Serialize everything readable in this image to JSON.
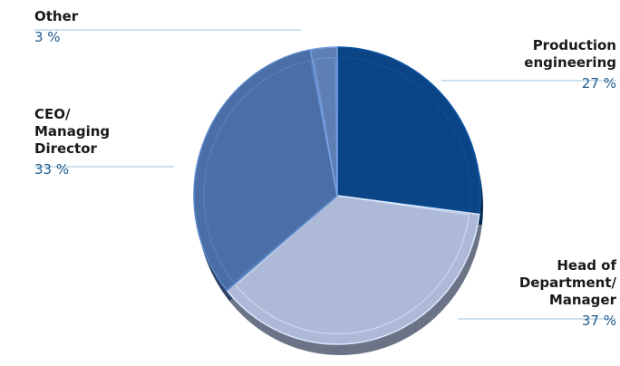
{
  "chart_data": {
    "type": "pie",
    "slices": [
      {
        "label": "Production\nengineering",
        "value": 27,
        "value_label": "27 %",
        "color": "#0b4585"
      },
      {
        "label": "Head of\nDepartment/\nManager",
        "value": 37,
        "value_label": "37 %",
        "color": "#aeb9d8"
      },
      {
        "label": "CEO/\nManaging\nDirector",
        "value": 33,
        "value_label": "33 %",
        "color": "#4a6ea5"
      },
      {
        "label": "Other",
        "value": 3,
        "value_label": "3 %",
        "color": "#5e7fb3"
      }
    ],
    "title": "",
    "legend": "none",
    "style": "3d"
  }
}
